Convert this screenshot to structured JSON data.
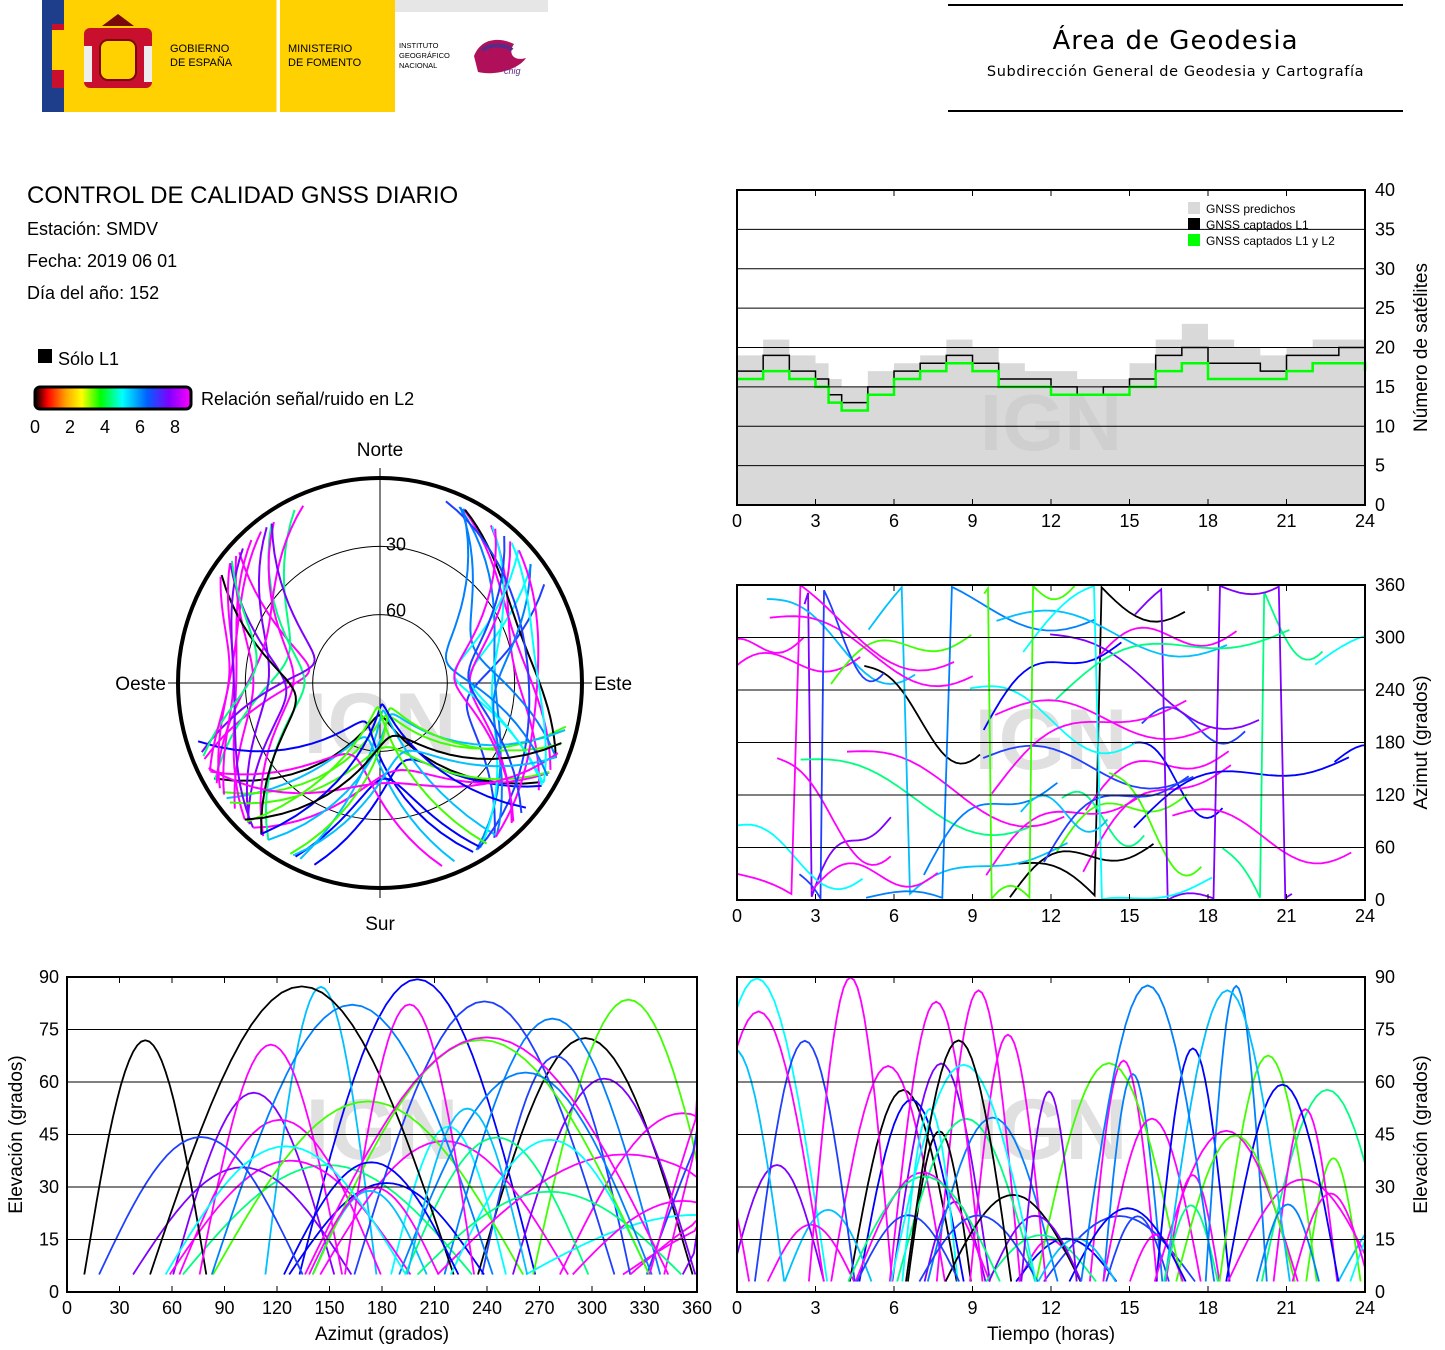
{
  "header": {
    "gov_line1": "GOBIERNO",
    "gov_line2": "DE ESPAÑA",
    "min_line1": "MINISTERIO",
    "min_line2": "DE FOMENTO",
    "ign_line1": "INSTITUTO",
    "ign_line2": "GEOGRÁFICO",
    "ign_line3": "NACIONAL",
    "cnig_logo": "cnig",
    "area_title": "Área de Geodesia",
    "area_subtitle": "Subdirección General de Geodesia y Cartografía"
  },
  "report": {
    "title": "CONTROL DE CALIDAD GNSS DIARIO",
    "station": "Estación: SMDV",
    "date": "Fecha: 2019 06 01",
    "doy": "Día del año: 152"
  },
  "legend": {
    "l1_only": "Sólo L1",
    "snr_label": "Relación señal/ruido en L2",
    "snr_ticks": [
      "0",
      "2",
      "4",
      "6",
      "8"
    ],
    "colors": {
      "l1_only": "#000000",
      "scale": [
        "#000000",
        "#ff0000",
        "#ffa500",
        "#ffff00",
        "#00ff00",
        "#00ffff",
        "#0000ff",
        "#8000ff",
        "#ff00ff"
      ]
    }
  },
  "watermark": "IGN",
  "chart_data": [
    {
      "id": "satellite-count",
      "type": "line",
      "x_range": [
        0,
        24
      ],
      "ylim": [
        0,
        40
      ],
      "x_ticks": [
        "0",
        "3",
        "6",
        "9",
        "12",
        "15",
        "18",
        "21",
        "24"
      ],
      "y_ticks": [
        "0",
        "5",
        "10",
        "15",
        "20",
        "25",
        "30",
        "35",
        "40"
      ],
      "ylabel": "Número de satélites",
      "legend_position": "top-right",
      "series": [
        {
          "name": "GNSS predichos",
          "color": "#d9d9d9",
          "x": [
            0,
            1,
            2,
            3,
            3.5,
            4,
            5,
            6,
            7,
            8,
            9,
            10,
            11,
            12,
            13,
            14,
            15,
            16,
            17,
            18,
            19,
            20,
            21,
            22,
            23,
            24
          ],
          "values": [
            19,
            21,
            19,
            18,
            16,
            15,
            17,
            18,
            19,
            21,
            20,
            18,
            17,
            17,
            16,
            16,
            18,
            21,
            23,
            21,
            20,
            19,
            20,
            21,
            21,
            20
          ]
        },
        {
          "name": "GNSS captados L1",
          "color": "#000000",
          "x": [
            0,
            1,
            2,
            3,
            3.5,
            4,
            5,
            6,
            7,
            8,
            9,
            10,
            11,
            12,
            13,
            14,
            15,
            16,
            17,
            18,
            19,
            20,
            21,
            22,
            23,
            24
          ],
          "values": [
            17,
            19,
            17,
            16,
            14,
            13,
            15,
            17,
            18,
            19,
            18,
            16,
            16,
            15,
            14,
            15,
            16,
            19,
            20,
            18,
            18,
            17,
            19,
            19,
            20,
            18
          ]
        },
        {
          "name": "GNSS captados L1 y L2",
          "color": "#00ff00",
          "x": [
            0,
            1,
            2,
            3,
            3.5,
            4,
            5,
            6,
            7,
            8,
            9,
            10,
            11,
            12,
            13,
            14,
            15,
            16,
            17,
            18,
            19,
            20,
            21,
            22,
            23,
            24
          ],
          "values": [
            16,
            17,
            16,
            15,
            13,
            12,
            14,
            16,
            17,
            18,
            17,
            15,
            15,
            14,
            14,
            14,
            15,
            17,
            18,
            16,
            16,
            16,
            17,
            18,
            18,
            17
          ]
        }
      ]
    },
    {
      "id": "skyplot",
      "type": "scatter",
      "title": "",
      "directions": [
        "Norte",
        "Este",
        "Sur",
        "Oeste"
      ],
      "elevation_rings": [
        "30",
        "60"
      ]
    },
    {
      "id": "azimuth-vs-time",
      "type": "scatter",
      "x_range": [
        0,
        24
      ],
      "ylim": [
        0,
        360
      ],
      "x_ticks": [
        "0",
        "3",
        "6",
        "9",
        "12",
        "15",
        "18",
        "21",
        "24"
      ],
      "y_ticks": [
        "0",
        "60",
        "120",
        "180",
        "240",
        "300",
        "360"
      ],
      "ylabel": "Azimut (grados)"
    },
    {
      "id": "elevation-vs-azimuth",
      "type": "scatter",
      "x_range": [
        0,
        360
      ],
      "ylim": [
        0,
        90
      ],
      "x_ticks": [
        "0",
        "30",
        "60",
        "90",
        "120",
        "150",
        "180",
        "210",
        "240",
        "270",
        "300",
        "330",
        "360"
      ],
      "y_ticks": [
        "0",
        "15",
        "30",
        "45",
        "60",
        "75",
        "90"
      ],
      "xlabel": "Azimut (grados)",
      "ylabel": "Elevación (grados)"
    },
    {
      "id": "elevation-vs-time",
      "type": "scatter",
      "x_range": [
        0,
        24
      ],
      "ylim": [
        0,
        90
      ],
      "x_ticks": [
        "0",
        "3",
        "6",
        "9",
        "12",
        "15",
        "18",
        "21",
        "24"
      ],
      "y_ticks": [
        "0",
        "15",
        "30",
        "45",
        "60",
        "75",
        "90"
      ],
      "xlabel": "Tiempo (horas)",
      "ylabel": "Elevación (grados)"
    }
  ]
}
